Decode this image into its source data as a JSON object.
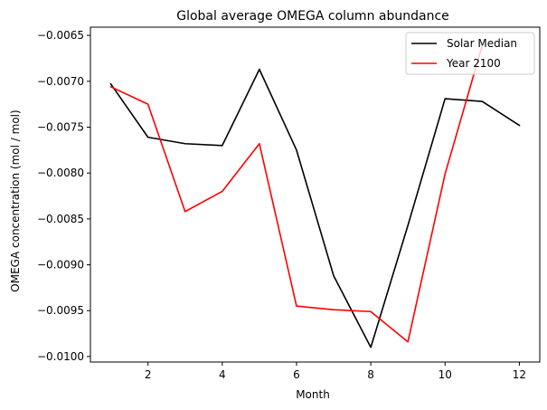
{
  "chart_data": {
    "type": "line",
    "title": "Global average OMEGA column abundance",
    "xlabel": "Month",
    "ylabel": "OMEGA concentration (mol / mol)",
    "xlim": [
      0.45,
      12.55
    ],
    "ylim": [
      -0.01006,
      -0.00641
    ],
    "xticks": [
      2,
      4,
      6,
      8,
      10,
      12
    ],
    "xtick_labels": [
      "2",
      "4",
      "6",
      "8",
      "10",
      "12"
    ],
    "yticks": [
      -0.01,
      -0.0095,
      -0.009,
      -0.0085,
      -0.008,
      -0.0075,
      -0.007,
      -0.0065
    ],
    "ytick_labels": [
      "−0.0100",
      "−0.0095",
      "−0.0090",
      "−0.0085",
      "−0.0080",
      "−0.0075",
      "−0.0070",
      "−0.0065"
    ],
    "grid": false,
    "legend_position": "top-right",
    "x": [
      1,
      2,
      3,
      4,
      5,
      6,
      7,
      8,
      9,
      10,
      11,
      12
    ],
    "series": [
      {
        "name": "Solar Median",
        "color": "#000000",
        "values": [
          -0.00703,
          -0.00761,
          -0.00768,
          -0.0077,
          -0.00687,
          -0.00775,
          -0.00912,
          -0.0099,
          -0.00857,
          -0.00719,
          -0.00722,
          -0.00748
        ]
      },
      {
        "name": "Year 2100",
        "color": "#ff0000",
        "x": [
          1,
          2,
          3,
          4,
          5,
          6,
          7,
          8,
          9,
          10,
          11
        ],
        "values": [
          -0.00706,
          -0.00725,
          -0.00842,
          -0.0082,
          -0.00768,
          -0.00945,
          -0.00949,
          -0.00951,
          -0.00984,
          -0.00801,
          -0.00661
        ]
      }
    ]
  }
}
